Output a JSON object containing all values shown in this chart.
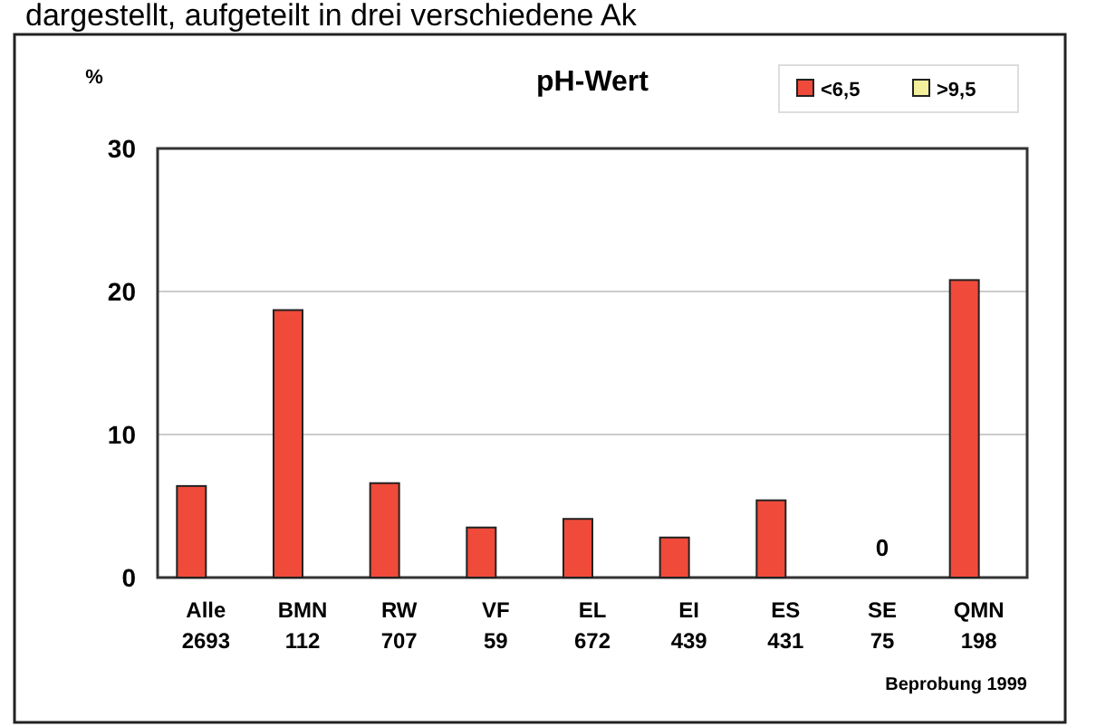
{
  "chart_data": {
    "type": "bar",
    "title": "pH-Wert",
    "ylabel": "%",
    "categories": [
      "Alle\n2693",
      "BMN\n112",
      "RW\n707",
      "VF\n59",
      "EL\n672",
      "EI\n439",
      "ES\n431",
      "SE\n75",
      "QMN\n198"
    ],
    "series": [
      {
        "name": "<6,5",
        "color": "#f04a3a",
        "values": [
          6.4,
          18.7,
          6.6,
          3.5,
          4.1,
          2.8,
          5.4,
          0,
          20.8
        ],
        "value_labels": [
          null,
          null,
          null,
          null,
          null,
          null,
          null,
          "0",
          null
        ]
      },
      {
        "name": ">9,5",
        "color": "#f3ef9a",
        "values": [
          0,
          0,
          0,
          0,
          0,
          0,
          0,
          0,
          0
        ]
      }
    ],
    "ylim": [
      0,
      30
    ],
    "yticks": [
      0,
      10,
      20,
      30
    ],
    "grid": "y",
    "legend": "top right",
    "annotations": [
      "dargestellt, aufgeteilt in drei verschiedene Ak",
      "Beprobung 1999"
    ]
  }
}
